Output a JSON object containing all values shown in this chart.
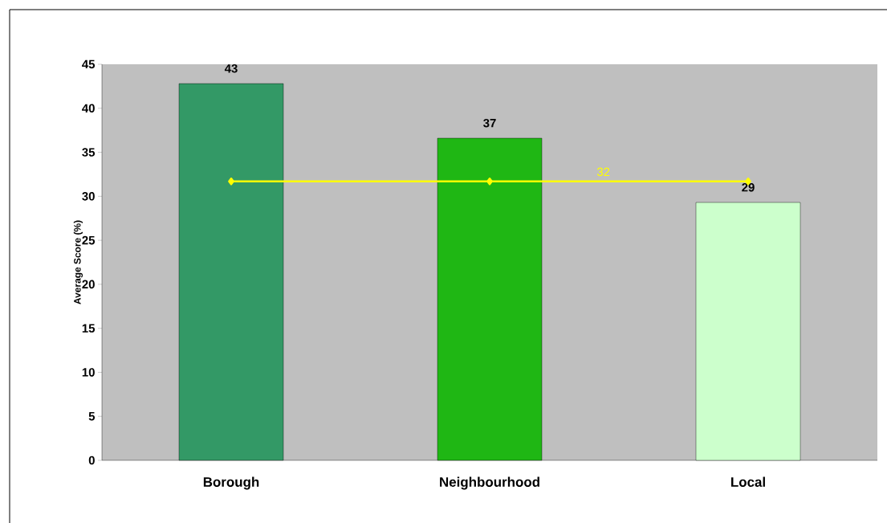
{
  "chart_data": {
    "type": "bar",
    "annotations": [
      "32"
    ],
    "ylabel": "Average Score (%)",
    "categories": [
      "Borough",
      "Neighbourhood",
      "Local"
    ],
    "ylim": [
      0,
      45
    ],
    "yticks": [
      0,
      5,
      10,
      15,
      20,
      25,
      30,
      35,
      40,
      45
    ],
    "series": [
      {
        "colors": [
          "#339966",
          "#1fb714",
          "#ccffcc"
        ],
        "values": [
          42.8,
          36.6,
          29.3
        ],
        "value_labels": [
          "43",
          "37",
          "29"
        ]
      },
      {
        "type": "line",
        "color": "#ffff00",
        "marker": "diamond",
        "values": [
          31.7,
          31.7,
          31.7
        ]
      }
    ]
  }
}
